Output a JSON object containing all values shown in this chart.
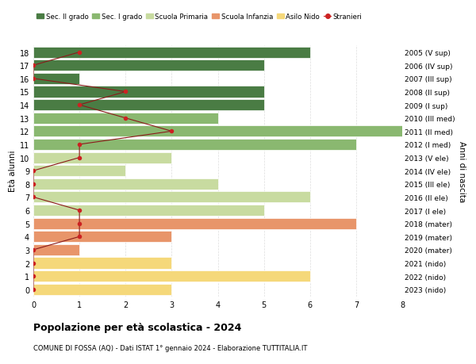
{
  "ages": [
    0,
    1,
    2,
    3,
    4,
    5,
    6,
    7,
    8,
    9,
    10,
    11,
    12,
    13,
    14,
    15,
    16,
    17,
    18
  ],
  "years": [
    "2023 (nido)",
    "2022 (nido)",
    "2021 (nido)",
    "2020 (mater)",
    "2019 (mater)",
    "2018 (mater)",
    "2017 (I ele)",
    "2016 (II ele)",
    "2015 (III ele)",
    "2014 (IV ele)",
    "2013 (V ele)",
    "2012 (I med)",
    "2011 (II med)",
    "2010 (III med)",
    "2009 (I sup)",
    "2008 (II sup)",
    "2007 (III sup)",
    "2006 (IV sup)",
    "2005 (V sup)"
  ],
  "bar_values": [
    3,
    6,
    3,
    1,
    3,
    7,
    5,
    6,
    4,
    2,
    3,
    7,
    8,
    4,
    5,
    5,
    1,
    5,
    6
  ],
  "bar_colors": [
    "#f5d87a",
    "#f5d87a",
    "#f5d87a",
    "#e8956a",
    "#e8956a",
    "#e8956a",
    "#c8dba0",
    "#c8dba0",
    "#c8dba0",
    "#c8dba0",
    "#c8dba0",
    "#8ab870",
    "#8ab870",
    "#8ab870",
    "#4a7c44",
    "#4a7c44",
    "#4a7c44",
    "#4a7c44",
    "#4a7c44"
  ],
  "stranieri_values": [
    0,
    0,
    0,
    0,
    1,
    1,
    1,
    0,
    0,
    0,
    1,
    1,
    3,
    2,
    1,
    2,
    0,
    0,
    1
  ],
  "legend_labels": [
    "Sec. II grado",
    "Sec. I grado",
    "Scuola Primaria",
    "Scuola Infanzia",
    "Asilo Nido",
    "Stranieri"
  ],
  "legend_colors": [
    "#4a7c44",
    "#8ab870",
    "#c8dba0",
    "#e8956a",
    "#f5d87a",
    "#cc2222"
  ],
  "title": "Popolazione per età scolastica - 2024",
  "subtitle": "COMUNE DI FOSSA (AQ) - Dati ISTAT 1° gennaio 2024 - Elaborazione TUTTITALIA.IT",
  "ylabel_left": "Età alunni",
  "ylabel_right": "Anni di nascita",
  "xlim": [
    0,
    8
  ],
  "bar_height": 0.85,
  "background_color": "#ffffff",
  "grid_color": "#dddddd"
}
